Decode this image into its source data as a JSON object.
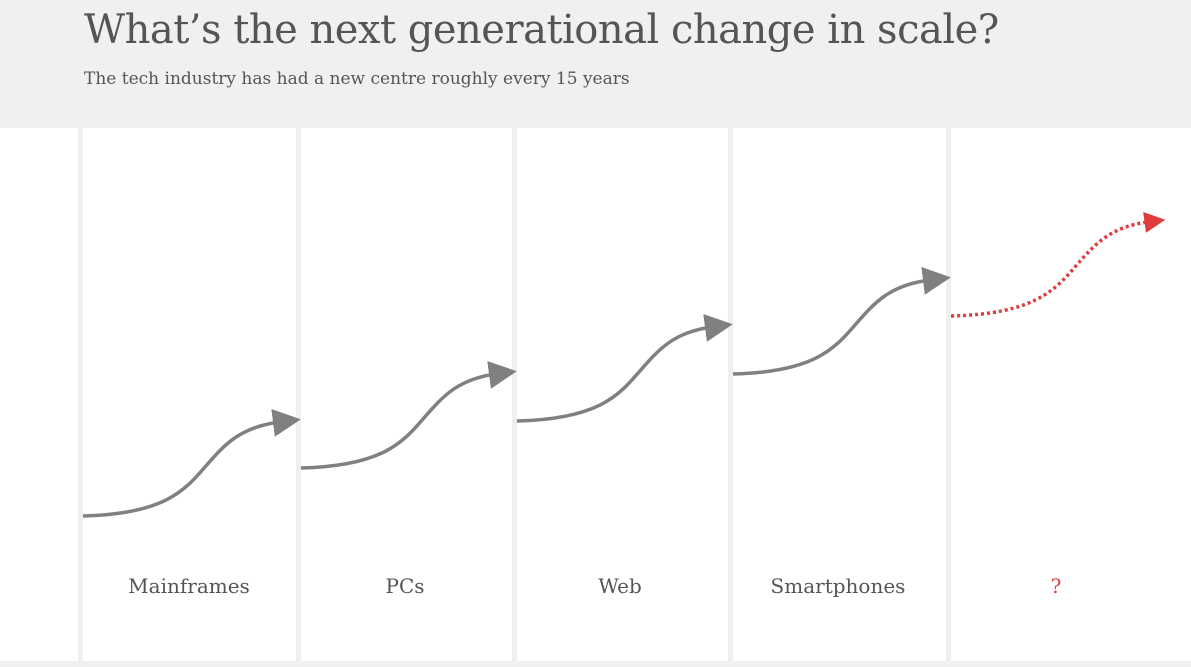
{
  "header": {
    "title": "What’s the next generational change in scale?",
    "subtitle": "The tech industry has had a new centre roughly every 15 years"
  },
  "eras": [
    {
      "label": "Mainframes",
      "highlight": false
    },
    {
      "label": "PCs",
      "highlight": false
    },
    {
      "label": "Web",
      "highlight": false
    },
    {
      "label": "Smartphones",
      "highlight": false
    },
    {
      "label": "?",
      "highlight": true
    }
  ],
  "colors": {
    "header_bg": "#f0f0f0",
    "divider": "#efefef",
    "curve": "#808080",
    "label": "#555555",
    "accent": "#e03c3c"
  }
}
